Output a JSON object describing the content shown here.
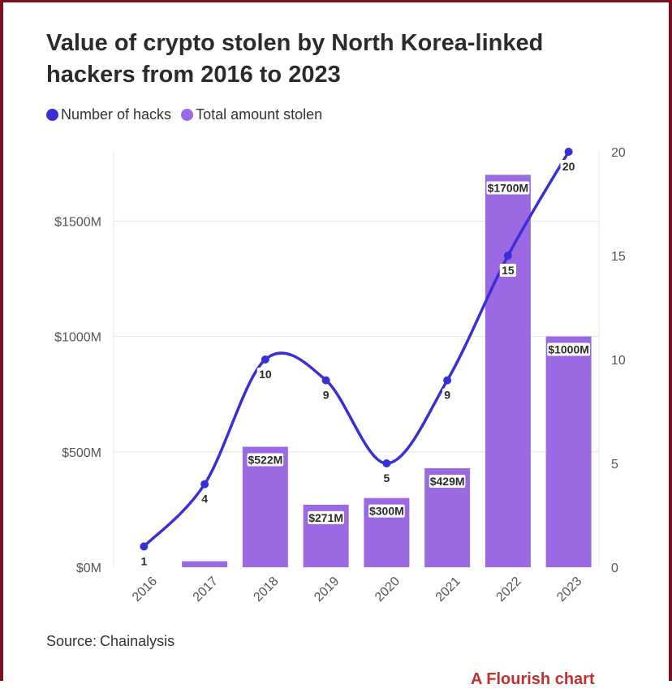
{
  "title": "Value of crypto stolen by North Korea-linked hackers from 2016 to 2023",
  "legend": {
    "hacks_label": "Number of hacks",
    "hacks_color": "#3a2fd4",
    "stolen_label": "Total amount stolen",
    "stolen_color": "#9b6ae3"
  },
  "source": {
    "label": "Source:",
    "text": "Chainalysis"
  },
  "footer_text": "A Flourish chart",
  "chart_data": {
    "type": "bar",
    "categories": [
      "2016",
      "2017",
      "2018",
      "2019",
      "2020",
      "2021",
      "2022",
      "2023"
    ],
    "series": [
      {
        "name": "Total amount stolen",
        "axis": "left",
        "unit": "$M",
        "values": [
          0,
          26,
          522,
          271,
          300,
          429,
          1700,
          1000
        ],
        "labels": [
          "",
          "",
          "$522M",
          "$271M",
          "$300M",
          "$429M",
          "$1700M",
          "$1000M"
        ]
      },
      {
        "name": "Number of hacks",
        "type": "line",
        "axis": "right",
        "values": [
          1,
          4,
          10,
          9,
          5,
          9,
          15,
          20
        ],
        "labels": [
          "1",
          "4",
          "10",
          "9",
          "5",
          "9",
          "15",
          "20"
        ]
      }
    ],
    "y_left": {
      "ticks": [
        "$0M",
        "$500M",
        "$1000M",
        "$1500M"
      ],
      "tick_values": [
        0,
        500,
        1000,
        1500
      ],
      "lim": [
        0,
        1800
      ]
    },
    "y_right": {
      "ticks": [
        "0",
        "5",
        "10",
        "15",
        "20"
      ],
      "tick_values": [
        0,
        5,
        10,
        15,
        20
      ],
      "lim": [
        0,
        20
      ]
    },
    "grid": true,
    "legend_position": "top-left"
  }
}
